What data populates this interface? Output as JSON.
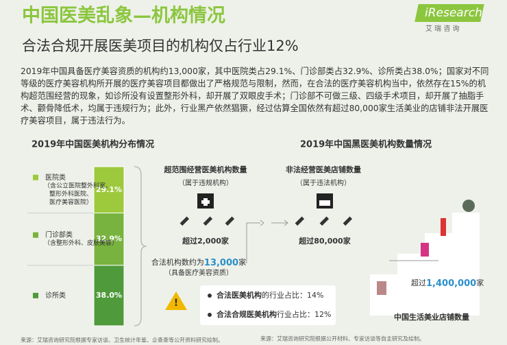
{
  "header": {
    "title": "中国医美乱象—机构情况",
    "subtitle": "合法合规开展医美项目的机构仅占行业12%",
    "logo": "iResearch",
    "logo_sub": "艾 瑞 咨 询"
  },
  "paragraph": "2019年中国具备医疗美容资质的机构约13,000家，其中医院类占29.1%、门诊部类占32.9%、诊所类占38.0%；国家对不同等级的医疗美容机构所开展的医疗美容项目都做出了严格规范与限制，然而，在合法的医疗美容机构当中，依然存在15%的机构超范围经营的现象，如诊所没有设置整形外科，却开展了双眼皮手术；门诊部不可做三级、四级手术项目，却开展了抽脂手术、颧骨降低术，均属于违规行为；此外，行业黑产依然猖獗，经过估算全国依然有超过80,000家生活美业的店铺非法开展医疗美容项目，属于违法行为。",
  "distribution": {
    "title": "2019年中国医美机构分布情况",
    "categories": [
      "医院类",
      "门诊部类",
      "诊所类"
    ],
    "notes": [
      [
        "（含公立医院整外科室、",
        "整形外科医院、",
        "医疗美容医院）"
      ],
      [
        "（含整形外科、皮肤美容）"
      ],
      []
    ],
    "values": [
      29.1,
      32.9,
      38.0
    ],
    "value_labels": [
      "29.1%",
      "32.9%",
      "38.0%"
    ],
    "colors": [
      "#9dc93c",
      "#78b33f",
      "#4f9a3b"
    ]
  },
  "black_market": {
    "title": "2019年中国黑医美机构数量情况",
    "over_scope": {
      "title": "超范围经营医美机构数量",
      "note": "（属于违规机构）",
      "prefix": "超过",
      "number": "2,000",
      "unit": "家"
    },
    "illegal": {
      "title": "非法经营医美店铺数量",
      "note": "（属于违法机构）",
      "prefix": "超过",
      "number": "80,000",
      "unit": "家"
    },
    "legal": {
      "prefix": "合法机构数约为",
      "number": "13,000",
      "unit": "家",
      "note": "（具备医疗美容资质）"
    },
    "shares": [
      {
        "label": "合法医美机构",
        "rest": "的行业占比：14%"
      },
      {
        "label": "合法合规医美机构",
        "rest": "行业占比：12%"
      }
    ],
    "beauty": {
      "prefix": "超过",
      "number": "1,400,000",
      "unit": "家",
      "title": "中国生活美业店铺数量"
    }
  },
  "sources": [
    "来源：艾瑞咨询研究院根据专家访谈、卫生统计年鉴、企查查等公开资料研究绘制。",
    "来源：艾瑞咨询研究院根据公开材料、专家访谈等自主研究及绘制。"
  ]
}
